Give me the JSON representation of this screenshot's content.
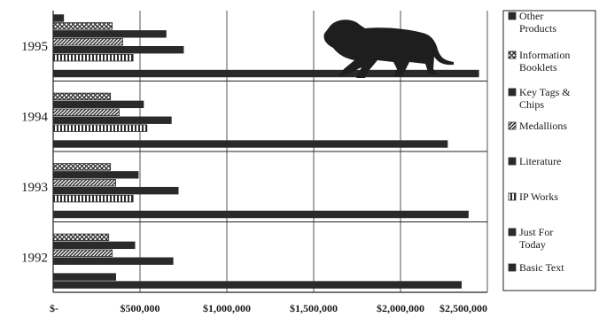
{
  "chart_data": {
    "type": "bar",
    "orientation": "horizontal",
    "title": "",
    "xlabel": "",
    "ylabel": "",
    "xlim": [
      0,
      2500000
    ],
    "grid": "vertical",
    "legend_position": "right",
    "categories": [
      "1995",
      "1994",
      "1993",
      "1992"
    ],
    "x_ticks": [
      "$-",
      "$500,000",
      "$1,000,000",
      "$1,500,000",
      "$2,000,000",
      "$2,500,000"
    ],
    "series": [
      {
        "name": "Other Products",
        "pattern": "solid",
        "values": [
          60000,
          0,
          0,
          0
        ]
      },
      {
        "name": "Information Booklets",
        "pattern": "cross-hatch",
        "values": [
          340000,
          330000,
          330000,
          320000
        ]
      },
      {
        "name": "Key Tags & Chips",
        "pattern": "solid",
        "values": [
          650000,
          520000,
          490000,
          470000
        ]
      },
      {
        "name": "Medallions",
        "pattern": "diagonal",
        "values": [
          400000,
          380000,
          360000,
          340000
        ]
      },
      {
        "name": "Literature",
        "pattern": "solid",
        "values": [
          750000,
          680000,
          720000,
          690000
        ]
      },
      {
        "name": "IP Works",
        "pattern": "vertical-lines",
        "values": [
          460000,
          540000,
          460000,
          0
        ]
      },
      {
        "name": "Just For Today",
        "pattern": "solid",
        "values": [
          0,
          0,
          0,
          360000
        ]
      },
      {
        "name": "Basic Text",
        "pattern": "solid",
        "values": [
          2450000,
          2270000,
          2390000,
          2350000
        ]
      }
    ],
    "legend_entries": [
      "Other Products",
      "Information Booklets",
      "Key Tags & Chips",
      "Medallions",
      "Literature",
      "IP Works",
      "Just For Today",
      "Basic Text"
    ]
  },
  "colors": {
    "bar": "#2a2a2a",
    "axis": "#222222",
    "grid": "#555555",
    "background": "#ffffff"
  },
  "decoration": {
    "icon": "lion-icon"
  }
}
